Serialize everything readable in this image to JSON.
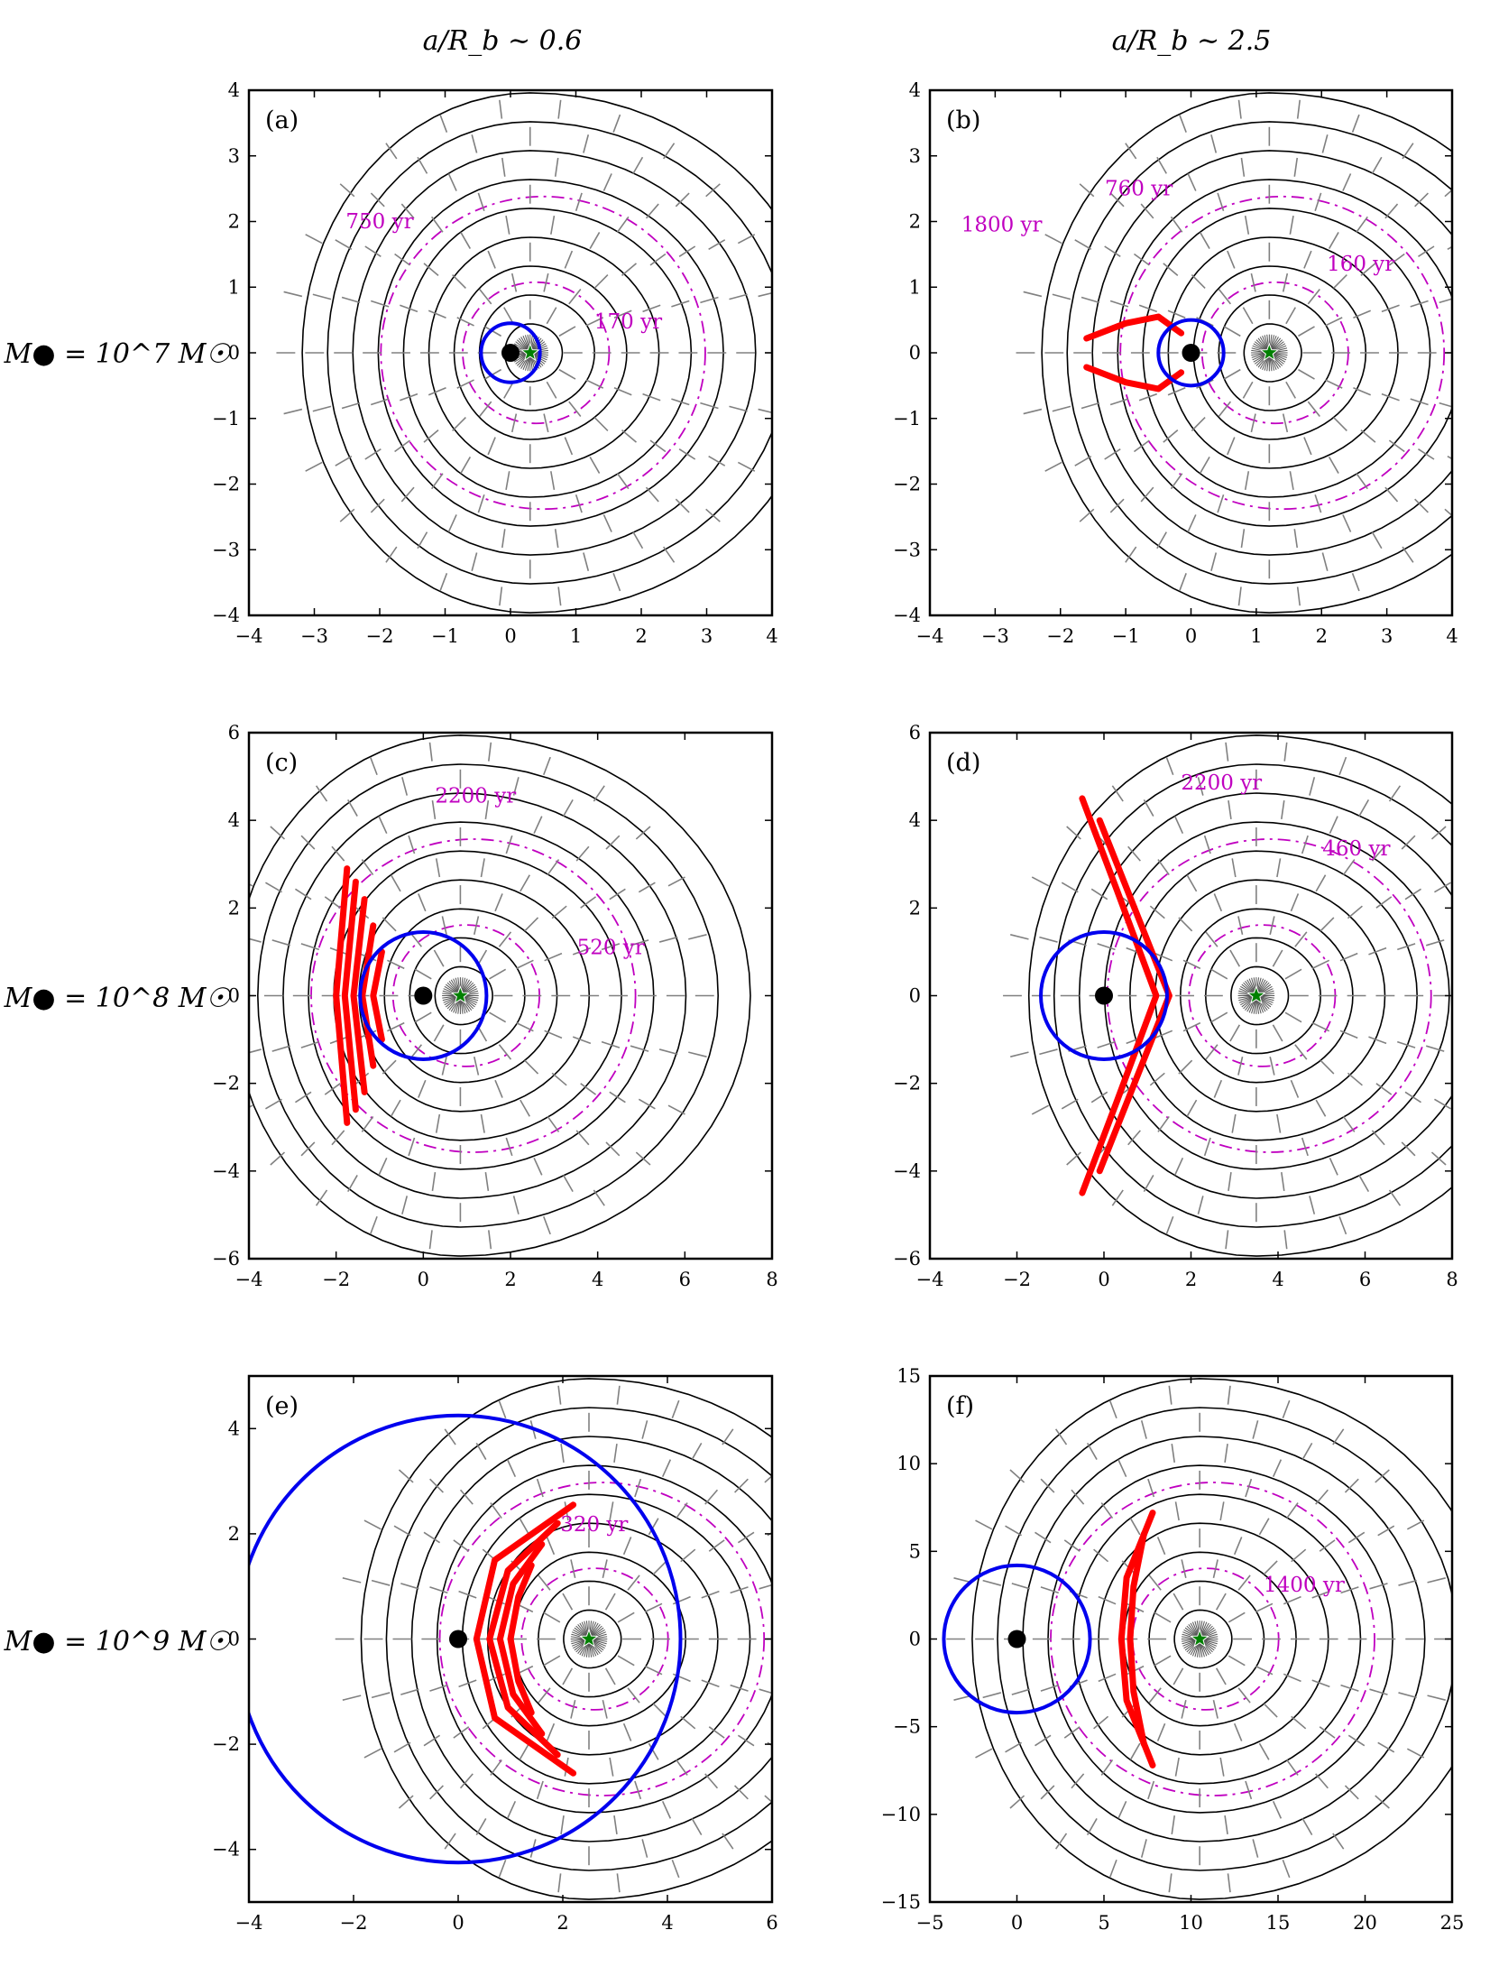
{
  "column_labels": [
    "a/R_b ∼ 0.6",
    "a/R_b ∼ 2.5"
  ],
  "row_labels": [
    "M● = 10^7 M☉",
    "M● = 10^8 M☉",
    "M● = 10^9 M☉"
  ],
  "colors": {
    "contour": "#000000",
    "flow_ticks": "#808080",
    "time_contour": "#c000c0",
    "influence_circle": "#0000ee",
    "stream": "#ff0000",
    "black_hole": "#000000",
    "star_marker": "#008000"
  },
  "icons": {
    "black_hole": "black-dot",
    "star": "green-star"
  },
  "chart_data": [
    {
      "panel": "(a)",
      "type": "contour-map",
      "xlim": [
        -4,
        4
      ],
      "ylim": [
        -4,
        4
      ],
      "xticks": [
        -4,
        -3,
        -2,
        -1,
        0,
        1,
        2,
        3,
        4
      ],
      "yticks": [
        -4,
        -3,
        -2,
        -1,
        0,
        1,
        2,
        3,
        4
      ],
      "black_hole": [
        0,
        0
      ],
      "star": [
        0.3,
        0
      ],
      "influence_radius": 0.45,
      "time_labels": [
        {
          "text": "750 yr",
          "x": -2.0,
          "y": 1.9
        },
        {
          "text": "170 yr",
          "x": 1.8,
          "y": 0.37
        }
      ],
      "streams": []
    },
    {
      "panel": "(b)",
      "type": "contour-map",
      "xlim": [
        -4,
        4
      ],
      "ylim": [
        -4,
        4
      ],
      "xticks": [
        -4,
        -3,
        -2,
        -1,
        0,
        1,
        2,
        3,
        4
      ],
      "yticks": [
        -4,
        -3,
        -2,
        -1,
        0,
        1,
        2,
        3,
        4
      ],
      "black_hole": [
        0,
        0
      ],
      "star": [
        1.2,
        0
      ],
      "influence_radius": 0.5,
      "time_labels": [
        {
          "text": "1800 yr",
          "x": -2.9,
          "y": 1.85
        },
        {
          "text": "760 yr",
          "x": -0.8,
          "y": 2.4
        },
        {
          "text": "160 yr",
          "x": 2.6,
          "y": 1.25
        }
      ],
      "streams": [
        {
          "x": [
            -1.6,
            -1.0,
            -0.5,
            -0.15
          ],
          "y": [
            0.22,
            0.45,
            0.55,
            0.3
          ]
        },
        {
          "x": [
            -1.6,
            -1.0,
            -0.5,
            -0.15
          ],
          "y": [
            -0.22,
            -0.45,
            -0.55,
            -0.3
          ]
        }
      ]
    },
    {
      "panel": "(c)",
      "type": "contour-map",
      "xlim": [
        -4,
        8
      ],
      "ylim": [
        -6,
        6
      ],
      "xticks": [
        -4,
        -2,
        0,
        2,
        4,
        6,
        8
      ],
      "yticks": [
        -6,
        -4,
        -2,
        0,
        2,
        4,
        6
      ],
      "black_hole": [
        0,
        0
      ],
      "star": [
        0.85,
        0
      ],
      "influence_radius": 1.45,
      "time_labels": [
        {
          "text": "2200 yr",
          "x": 1.2,
          "y": 4.4
        },
        {
          "text": "520 yr",
          "x": 4.3,
          "y": 0.95
        }
      ],
      "streams": [
        {
          "x": [
            -1.75,
            -2.0,
            -1.75
          ],
          "y": [
            2.9,
            0.0,
            -2.9
          ]
        },
        {
          "x": [
            -1.55,
            -1.8,
            -1.55
          ],
          "y": [
            2.6,
            0.0,
            -2.6
          ]
        },
        {
          "x": [
            -1.35,
            -1.6,
            -1.35
          ],
          "y": [
            2.2,
            0.0,
            -2.2
          ]
        },
        {
          "x": [
            -1.15,
            -1.4,
            -1.15
          ],
          "y": [
            1.6,
            0.0,
            -1.6
          ]
        },
        {
          "x": [
            -0.95,
            -1.15,
            -0.95
          ],
          "y": [
            1.0,
            0.0,
            -1.0
          ]
        }
      ]
    },
    {
      "panel": "(d)",
      "type": "contour-map",
      "xlim": [
        -4,
        8
      ],
      "ylim": [
        -6,
        6
      ],
      "xticks": [
        -4,
        -2,
        0,
        2,
        4,
        6,
        8
      ],
      "yticks": [
        -6,
        -4,
        -2,
        0,
        2,
        4,
        6
      ],
      "black_hole": [
        0,
        0
      ],
      "star": [
        3.5,
        0
      ],
      "influence_radius": 1.45,
      "time_labels": [
        {
          "text": "2200 yr",
          "x": 2.7,
          "y": 4.7
        },
        {
          "text": "460 yr",
          "x": 5.8,
          "y": 3.2
        }
      ],
      "streams": [
        {
          "x": [
            -0.5,
            0.3,
            1.2,
            0.3,
            -0.5
          ],
          "y": [
            4.5,
            2.4,
            0.0,
            -2.4,
            -4.5
          ]
        },
        {
          "x": [
            -0.1,
            0.7,
            1.5,
            0.7,
            -0.1
          ],
          "y": [
            4.0,
            2.0,
            0.0,
            -2.0,
            -4.0
          ]
        }
      ]
    },
    {
      "panel": "(e)",
      "type": "contour-map",
      "xlim": [
        -4,
        6
      ],
      "ylim": [
        -5,
        5
      ],
      "xticks": [
        -4,
        -2,
        0,
        2,
        4,
        6
      ],
      "yticks": [
        -4,
        -2,
        0,
        2,
        4
      ],
      "black_hole": [
        0,
        0
      ],
      "star": [
        2.5,
        0
      ],
      "influence_radius": 4.25,
      "time_labels": [
        {
          "text": "320 yr",
          "x": 2.6,
          "y": 2.05
        }
      ],
      "streams": [
        {
          "x": [
            2.2,
            0.7,
            0.35,
            0.7,
            2.2
          ],
          "y": [
            2.55,
            1.5,
            0.0,
            -1.5,
            -2.55
          ]
        },
        {
          "x": [
            1.9,
            0.95,
            0.6,
            0.95,
            1.9
          ],
          "y": [
            2.2,
            1.3,
            0.0,
            -1.3,
            -2.2
          ]
        },
        {
          "x": [
            1.6,
            1.05,
            0.8,
            1.05,
            1.6
          ],
          "y": [
            1.8,
            1.05,
            0.0,
            -1.05,
            -1.8
          ]
        },
        {
          "x": [
            1.4,
            1.15,
            1.0,
            1.15,
            1.4
          ],
          "y": [
            1.4,
            0.8,
            0.0,
            -0.8,
            -1.4
          ]
        }
      ]
    },
    {
      "panel": "(f)",
      "type": "contour-map",
      "xlim": [
        -5,
        25
      ],
      "ylim": [
        -15,
        15
      ],
      "xticks": [
        -5,
        0,
        5,
        10,
        15,
        20,
        25
      ],
      "yticks": [
        -15,
        -10,
        -5,
        0,
        5,
        10,
        15
      ],
      "black_hole": [
        0,
        0
      ],
      "star": [
        10.5,
        0
      ],
      "influence_radius": 4.2,
      "time_labels": [
        {
          "text": "1400 yr",
          "x": 16.5,
          "y": 2.7
        }
      ],
      "streams": [
        {
          "x": [
            7.8,
            6.3,
            6.0,
            6.3,
            7.8
          ],
          "y": [
            7.2,
            3.5,
            0.0,
            -3.5,
            -7.2
          ]
        },
        {
          "x": [
            7.3,
            6.7,
            6.5,
            6.7,
            7.3
          ],
          "y": [
            6.0,
            3.0,
            0.0,
            -3.0,
            -6.0
          ]
        }
      ]
    }
  ]
}
